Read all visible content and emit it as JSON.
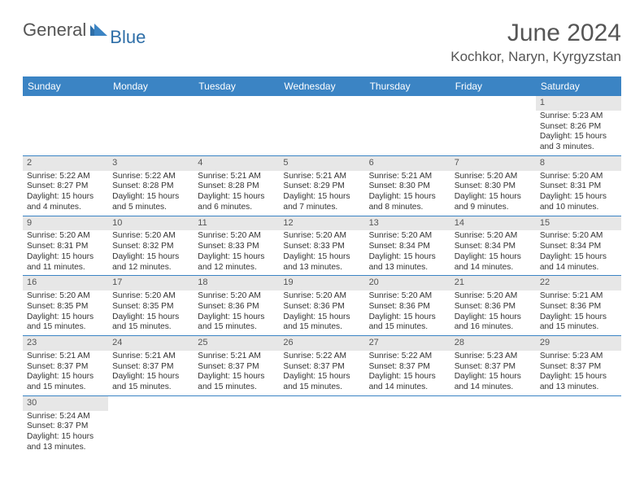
{
  "logo": {
    "general": "General",
    "blue": "Blue"
  },
  "title": "June 2024",
  "location": "Kochkor, Naryn, Kyrgyzstan",
  "colors": {
    "header_bg": "#3b84c4",
    "header_text": "#ffffff",
    "daynum_bg": "#e7e7e7",
    "daynum_text": "#555555",
    "body_text": "#333333",
    "divider": "#3b84c4",
    "logo_blue": "#2f6fa8",
    "logo_gray": "#555555"
  },
  "day_headers": [
    "Sunday",
    "Monday",
    "Tuesday",
    "Wednesday",
    "Thursday",
    "Friday",
    "Saturday"
  ],
  "weeks": [
    [
      null,
      null,
      null,
      null,
      null,
      null,
      {
        "n": "1",
        "sr": "Sunrise: 5:23 AM",
        "ss": "Sunset: 8:26 PM",
        "d1": "Daylight: 15 hours",
        "d2": "and 3 minutes."
      }
    ],
    [
      {
        "n": "2",
        "sr": "Sunrise: 5:22 AM",
        "ss": "Sunset: 8:27 PM",
        "d1": "Daylight: 15 hours",
        "d2": "and 4 minutes."
      },
      {
        "n": "3",
        "sr": "Sunrise: 5:22 AM",
        "ss": "Sunset: 8:28 PM",
        "d1": "Daylight: 15 hours",
        "d2": "and 5 minutes."
      },
      {
        "n": "4",
        "sr": "Sunrise: 5:21 AM",
        "ss": "Sunset: 8:28 PM",
        "d1": "Daylight: 15 hours",
        "d2": "and 6 minutes."
      },
      {
        "n": "5",
        "sr": "Sunrise: 5:21 AM",
        "ss": "Sunset: 8:29 PM",
        "d1": "Daylight: 15 hours",
        "d2": "and 7 minutes."
      },
      {
        "n": "6",
        "sr": "Sunrise: 5:21 AM",
        "ss": "Sunset: 8:30 PM",
        "d1": "Daylight: 15 hours",
        "d2": "and 8 minutes."
      },
      {
        "n": "7",
        "sr": "Sunrise: 5:20 AM",
        "ss": "Sunset: 8:30 PM",
        "d1": "Daylight: 15 hours",
        "d2": "and 9 minutes."
      },
      {
        "n": "8",
        "sr": "Sunrise: 5:20 AM",
        "ss": "Sunset: 8:31 PM",
        "d1": "Daylight: 15 hours",
        "d2": "and 10 minutes."
      }
    ],
    [
      {
        "n": "9",
        "sr": "Sunrise: 5:20 AM",
        "ss": "Sunset: 8:31 PM",
        "d1": "Daylight: 15 hours",
        "d2": "and 11 minutes."
      },
      {
        "n": "10",
        "sr": "Sunrise: 5:20 AM",
        "ss": "Sunset: 8:32 PM",
        "d1": "Daylight: 15 hours",
        "d2": "and 12 minutes."
      },
      {
        "n": "11",
        "sr": "Sunrise: 5:20 AM",
        "ss": "Sunset: 8:33 PM",
        "d1": "Daylight: 15 hours",
        "d2": "and 12 minutes."
      },
      {
        "n": "12",
        "sr": "Sunrise: 5:20 AM",
        "ss": "Sunset: 8:33 PM",
        "d1": "Daylight: 15 hours",
        "d2": "and 13 minutes."
      },
      {
        "n": "13",
        "sr": "Sunrise: 5:20 AM",
        "ss": "Sunset: 8:34 PM",
        "d1": "Daylight: 15 hours",
        "d2": "and 13 minutes."
      },
      {
        "n": "14",
        "sr": "Sunrise: 5:20 AM",
        "ss": "Sunset: 8:34 PM",
        "d1": "Daylight: 15 hours",
        "d2": "and 14 minutes."
      },
      {
        "n": "15",
        "sr": "Sunrise: 5:20 AM",
        "ss": "Sunset: 8:34 PM",
        "d1": "Daylight: 15 hours",
        "d2": "and 14 minutes."
      }
    ],
    [
      {
        "n": "16",
        "sr": "Sunrise: 5:20 AM",
        "ss": "Sunset: 8:35 PM",
        "d1": "Daylight: 15 hours",
        "d2": "and 15 minutes."
      },
      {
        "n": "17",
        "sr": "Sunrise: 5:20 AM",
        "ss": "Sunset: 8:35 PM",
        "d1": "Daylight: 15 hours",
        "d2": "and 15 minutes."
      },
      {
        "n": "18",
        "sr": "Sunrise: 5:20 AM",
        "ss": "Sunset: 8:36 PM",
        "d1": "Daylight: 15 hours",
        "d2": "and 15 minutes."
      },
      {
        "n": "19",
        "sr": "Sunrise: 5:20 AM",
        "ss": "Sunset: 8:36 PM",
        "d1": "Daylight: 15 hours",
        "d2": "and 15 minutes."
      },
      {
        "n": "20",
        "sr": "Sunrise: 5:20 AM",
        "ss": "Sunset: 8:36 PM",
        "d1": "Daylight: 15 hours",
        "d2": "and 15 minutes."
      },
      {
        "n": "21",
        "sr": "Sunrise: 5:20 AM",
        "ss": "Sunset: 8:36 PM",
        "d1": "Daylight: 15 hours",
        "d2": "and 16 minutes."
      },
      {
        "n": "22",
        "sr": "Sunrise: 5:21 AM",
        "ss": "Sunset: 8:36 PM",
        "d1": "Daylight: 15 hours",
        "d2": "and 15 minutes."
      }
    ],
    [
      {
        "n": "23",
        "sr": "Sunrise: 5:21 AM",
        "ss": "Sunset: 8:37 PM",
        "d1": "Daylight: 15 hours",
        "d2": "and 15 minutes."
      },
      {
        "n": "24",
        "sr": "Sunrise: 5:21 AM",
        "ss": "Sunset: 8:37 PM",
        "d1": "Daylight: 15 hours",
        "d2": "and 15 minutes."
      },
      {
        "n": "25",
        "sr": "Sunrise: 5:21 AM",
        "ss": "Sunset: 8:37 PM",
        "d1": "Daylight: 15 hours",
        "d2": "and 15 minutes."
      },
      {
        "n": "26",
        "sr": "Sunrise: 5:22 AM",
        "ss": "Sunset: 8:37 PM",
        "d1": "Daylight: 15 hours",
        "d2": "and 15 minutes."
      },
      {
        "n": "27",
        "sr": "Sunrise: 5:22 AM",
        "ss": "Sunset: 8:37 PM",
        "d1": "Daylight: 15 hours",
        "d2": "and 14 minutes."
      },
      {
        "n": "28",
        "sr": "Sunrise: 5:23 AM",
        "ss": "Sunset: 8:37 PM",
        "d1": "Daylight: 15 hours",
        "d2": "and 14 minutes."
      },
      {
        "n": "29",
        "sr": "Sunrise: 5:23 AM",
        "ss": "Sunset: 8:37 PM",
        "d1": "Daylight: 15 hours",
        "d2": "and 13 minutes."
      }
    ],
    [
      {
        "n": "30",
        "sr": "Sunrise: 5:24 AM",
        "ss": "Sunset: 8:37 PM",
        "d1": "Daylight: 15 hours",
        "d2": "and 13 minutes."
      },
      null,
      null,
      null,
      null,
      null,
      null
    ]
  ]
}
